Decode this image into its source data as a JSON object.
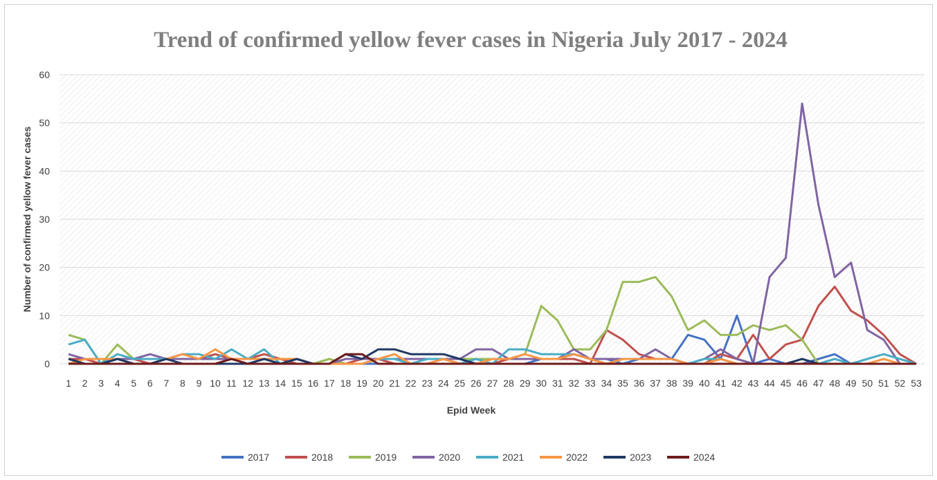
{
  "chart_data": {
    "type": "line",
    "title": "Trend of confirmed yellow fever cases in Nigeria July 2017 - 2024",
    "xlabel": "Epid Week",
    "ylabel": "Number of confirmed yellow fever cases",
    "x": [
      1,
      2,
      3,
      4,
      5,
      6,
      7,
      8,
      9,
      10,
      11,
      12,
      13,
      14,
      15,
      16,
      17,
      18,
      19,
      20,
      21,
      22,
      23,
      24,
      25,
      26,
      27,
      28,
      29,
      30,
      31,
      32,
      33,
      34,
      35,
      36,
      37,
      38,
      39,
      40,
      41,
      42,
      43,
      44,
      45,
      46,
      47,
      48,
      49,
      50,
      51,
      52,
      53
    ],
    "ylim": [
      0,
      60
    ],
    "yticks": [
      0,
      10,
      20,
      30,
      40,
      50,
      60
    ],
    "grid": true,
    "legend_position": "bottom",
    "series": [
      {
        "name": "2017",
        "color": "#4472c4",
        "values": [
          0,
          0,
          0,
          0,
          0,
          0,
          0,
          0,
          0,
          0,
          0,
          0,
          0,
          0,
          0,
          0,
          0,
          0,
          0,
          0,
          0,
          0,
          0,
          0,
          0,
          0,
          0,
          0,
          0,
          1,
          1,
          2,
          1,
          1,
          0,
          1,
          1,
          1,
          6,
          5,
          1,
          10,
          0,
          1,
          0,
          0,
          1,
          2,
          0,
          0,
          0,
          0,
          0
        ]
      },
      {
        "name": "2018",
        "color": "#c0504d",
        "values": [
          1,
          1,
          0,
          1,
          1,
          0,
          1,
          1,
          1,
          2,
          1,
          1,
          2,
          1,
          0,
          0,
          0,
          0,
          1,
          1,
          0,
          0,
          0,
          1,
          0,
          0,
          0,
          1,
          1,
          1,
          1,
          1,
          0,
          7,
          5,
          2,
          1,
          1,
          0,
          0,
          2,
          1,
          6,
          1,
          4,
          5,
          12,
          16,
          11,
          9,
          6,
          2,
          0
        ]
      },
      {
        "name": "2019",
        "color": "#9bbb59",
        "values": [
          6,
          5,
          0,
          4,
          1,
          1,
          1,
          1,
          1,
          1,
          1,
          1,
          1,
          1,
          1,
          0,
          1,
          0,
          0,
          1,
          1,
          1,
          1,
          1,
          1,
          1,
          1,
          1,
          2,
          12,
          9,
          3,
          3,
          7,
          17,
          17,
          18,
          14,
          7,
          9,
          6,
          6,
          8,
          7,
          8,
          5,
          0,
          0,
          0,
          0,
          0,
          0,
          0
        ]
      },
      {
        "name": "2020",
        "color": "#8064a2",
        "values": [
          2,
          1,
          1,
          1,
          1,
          2,
          1,
          1,
          1,
          1,
          1,
          1,
          1,
          1,
          1,
          0,
          0,
          1,
          1,
          1,
          1,
          1,
          1,
          1,
          1,
          3,
          3,
          1,
          1,
          1,
          1,
          3,
          1,
          1,
          1,
          1,
          3,
          1,
          0,
          1,
          3,
          1,
          0,
          18,
          22,
          54,
          33,
          18,
          21,
          7,
          5,
          0,
          0
        ]
      },
      {
        "name": "2021",
        "color": "#4bacc6",
        "values": [
          4,
          5,
          0,
          2,
          1,
          1,
          1,
          2,
          2,
          1,
          3,
          1,
          3,
          0,
          1,
          0,
          0,
          0,
          0,
          1,
          1,
          0,
          1,
          1,
          0,
          1,
          0,
          3,
          3,
          2,
          2,
          2,
          1,
          0,
          1,
          1,
          1,
          1,
          0,
          1,
          1,
          0,
          0,
          0,
          0,
          0,
          0,
          1,
          0,
          1,
          2,
          1,
          0
        ]
      },
      {
        "name": "2022",
        "color": "#f79646",
        "values": [
          0,
          1,
          1,
          1,
          0,
          0,
          1,
          2,
          1,
          3,
          1,
          1,
          1,
          1,
          1,
          0,
          0,
          0,
          0,
          1,
          2,
          0,
          0,
          1,
          0,
          0,
          1,
          1,
          2,
          1,
          1,
          2,
          1,
          0,
          1,
          1,
          1,
          1,
          0,
          0,
          1,
          0,
          0,
          0,
          0,
          0,
          0,
          0,
          0,
          0,
          1,
          0,
          0
        ]
      },
      {
        "name": "2023",
        "color": "#1f3864",
        "values": [
          1,
          0,
          0,
          1,
          0,
          0,
          1,
          0,
          0,
          0,
          0,
          0,
          1,
          0,
          1,
          0,
          0,
          2,
          1,
          3,
          3,
          2,
          2,
          2,
          1,
          0,
          0,
          0,
          0,
          0,
          0,
          0,
          0,
          0,
          0,
          0,
          0,
          0,
          0,
          0,
          0,
          0,
          0,
          0,
          0,
          1,
          0,
          0,
          0,
          0,
          0,
          0,
          0
        ]
      },
      {
        "name": "2024",
        "color": "#6d1b1b",
        "values": [
          0,
          0,
          0,
          0,
          0,
          0,
          0,
          0,
          0,
          0,
          1,
          0,
          0,
          0,
          0,
          0,
          0,
          2,
          2,
          0,
          0,
          0,
          0,
          0,
          0,
          0,
          0,
          0,
          0,
          0,
          0,
          0,
          0,
          0,
          0,
          0,
          0,
          0,
          0,
          0,
          0,
          0,
          0,
          0,
          0,
          0,
          0,
          0,
          0,
          0,
          0,
          0,
          0
        ]
      }
    ]
  }
}
